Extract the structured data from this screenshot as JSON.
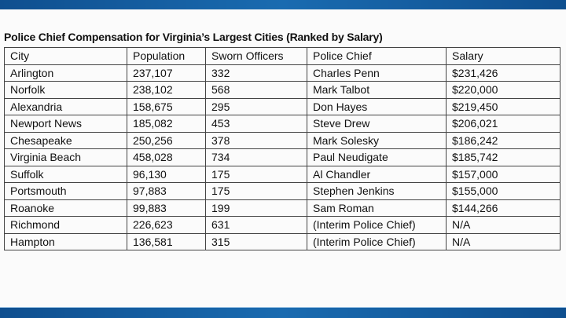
{
  "title": "Police Chief Compensation for Virginia’s Largest Cities (Ranked by Salary)",
  "table": {
    "headers": [
      "City",
      "Population",
      "Sworn Officers",
      "Police Chief",
      "Salary"
    ],
    "rows": [
      [
        "Arlington",
        "237,107",
        "332",
        "Charles Penn",
        "$231,426"
      ],
      [
        "Norfolk",
        "238,102",
        "568",
        "Mark Talbot",
        "$220,000"
      ],
      [
        "Alexandria",
        "158,675",
        "295",
        "Don Hayes",
        "$219,450"
      ],
      [
        "Newport News",
        "185,082",
        "453",
        "Steve Drew",
        "$206,021"
      ],
      [
        "Chesapeake",
        "250,256",
        "378",
        "Mark Solesky",
        "$186,242"
      ],
      [
        "Virginia Beach",
        "458,028",
        "734",
        "Paul Neudigate",
        "$185,742"
      ],
      [
        "Suffolk",
        "96,130",
        "175",
        "Al Chandler",
        "$157,000"
      ],
      [
        "Portsmouth",
        "97,883",
        "175",
        "Stephen Jenkins",
        "$155,000"
      ],
      [
        "Roanoke",
        "99,883",
        "199",
        "Sam Roman",
        "$144,266"
      ],
      [
        "Richmond",
        "226,623",
        "631",
        "(Interim Police Chief)",
        "N/A"
      ],
      [
        "Hampton",
        "136,581",
        "315",
        "(Interim Police Chief)",
        "N/A"
      ]
    ]
  },
  "colors": {
    "band": "#1a6bb0"
  }
}
